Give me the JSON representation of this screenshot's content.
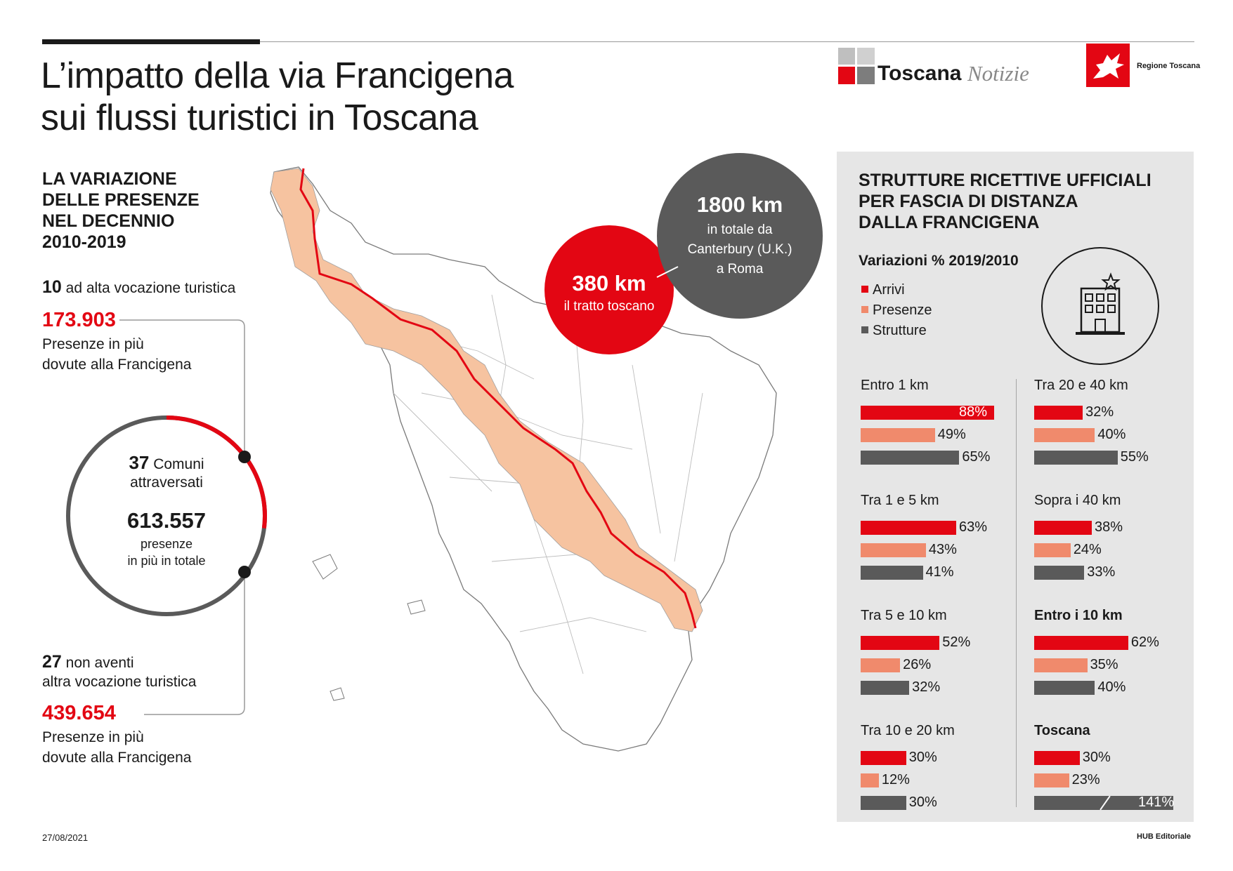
{
  "title": {
    "line1": "L’impatto della via Francigena",
    "line2": "sui flussi turistici in Toscana"
  },
  "logos": {
    "toscana_notizie_bold": "Toscana",
    "toscana_notizie_italic": "Notizie",
    "regione": "Regione Toscana"
  },
  "left": {
    "heading": [
      "LA VARIAZIONE",
      "DELLE PRESENZE",
      "NEL DECENNIO",
      "2010-2019"
    ],
    "high_count": "10",
    "high_text": " ad alta vocazione turistica",
    "high_value": "173.903",
    "high_sub": [
      "Presenze in più",
      "dovute alla Francigena"
    ],
    "low_count": "27",
    "low_text": " non aventi",
    "low_text2": "altra vocazione turistica",
    "low_value": "439.654",
    "low_sub": [
      "Presenze in più",
      "dovute alla Francigena"
    ]
  },
  "circle": {
    "count": "37",
    "count_label": " Comuni",
    "count_label2": "attraversati",
    "total": "613.557",
    "total_label": "presenze",
    "total_label2": "in più in totale",
    "red_fraction": 0.27
  },
  "map": {
    "red_circle_value": "380 km",
    "red_circle_label": "il tratto toscano",
    "grey_circle_value": "1800 km",
    "grey_circle_label": [
      "in totale da",
      "Canterbury (U.K.)",
      "a Roma"
    ]
  },
  "panel": {
    "heading": [
      "STRUTTURE RICETTIVE UFFICIALI",
      "PER FASCIA DI DISTANZA",
      "DALLA FRANCIGENA"
    ],
    "subtitle": "Variazioni % 2019/2010",
    "legend": [
      {
        "label": "Arrivi",
        "color": "#e30613"
      },
      {
        "label": "Presenze",
        "color": "#f08a6c"
      },
      {
        "label": "Strutture",
        "color": "#5a5a5a"
      }
    ]
  },
  "chart_data": {
    "type": "bar",
    "title": "Variazioni % 2019/2010",
    "series_names": [
      "Arrivi",
      "Presenze",
      "Strutture"
    ],
    "colors": [
      "#e30613",
      "#f08a6c",
      "#5a5a5a"
    ],
    "groups": [
      {
        "label": "Entro 1 km",
        "bold": false,
        "values": [
          88,
          49,
          65
        ],
        "labels": [
          "88%",
          "49%",
          "65%"
        ]
      },
      {
        "label": "Tra 1 e 5 km",
        "bold": false,
        "values": [
          63,
          43,
          41
        ],
        "labels": [
          "63%",
          "43%",
          "41%"
        ]
      },
      {
        "label": "Tra 5 e 10 km",
        "bold": false,
        "values": [
          52,
          26,
          32
        ],
        "labels": [
          "52%",
          "26%",
          "32%"
        ]
      },
      {
        "label": "Tra 10 e 20 km",
        "bold": false,
        "values": [
          30,
          12,
          30
        ],
        "labels": [
          "30%",
          "12%",
          "30%"
        ]
      },
      {
        "label": "Tra 20 e 40 km",
        "bold": false,
        "values": [
          32,
          40,
          55
        ],
        "labels": [
          "32%",
          "40%",
          "55%"
        ]
      },
      {
        "label": "Sopra i 40 km",
        "bold": false,
        "values": [
          38,
          24,
          33
        ],
        "labels": [
          "38%",
          "24%",
          "33%"
        ]
      },
      {
        "label": "Entro i 10 km",
        "bold": true,
        "values": [
          62,
          35,
          40
        ],
        "labels": [
          "62%",
          "35%",
          "40%"
        ]
      },
      {
        "label": "Toscana",
        "bold": true,
        "values": [
          30,
          23,
          141
        ],
        "labels": [
          "30%",
          "23%",
          "141%"
        ],
        "broken_bar": true
      }
    ]
  },
  "footer": {
    "date": "27/08/2021",
    "credit": "HUB Editoriale"
  }
}
